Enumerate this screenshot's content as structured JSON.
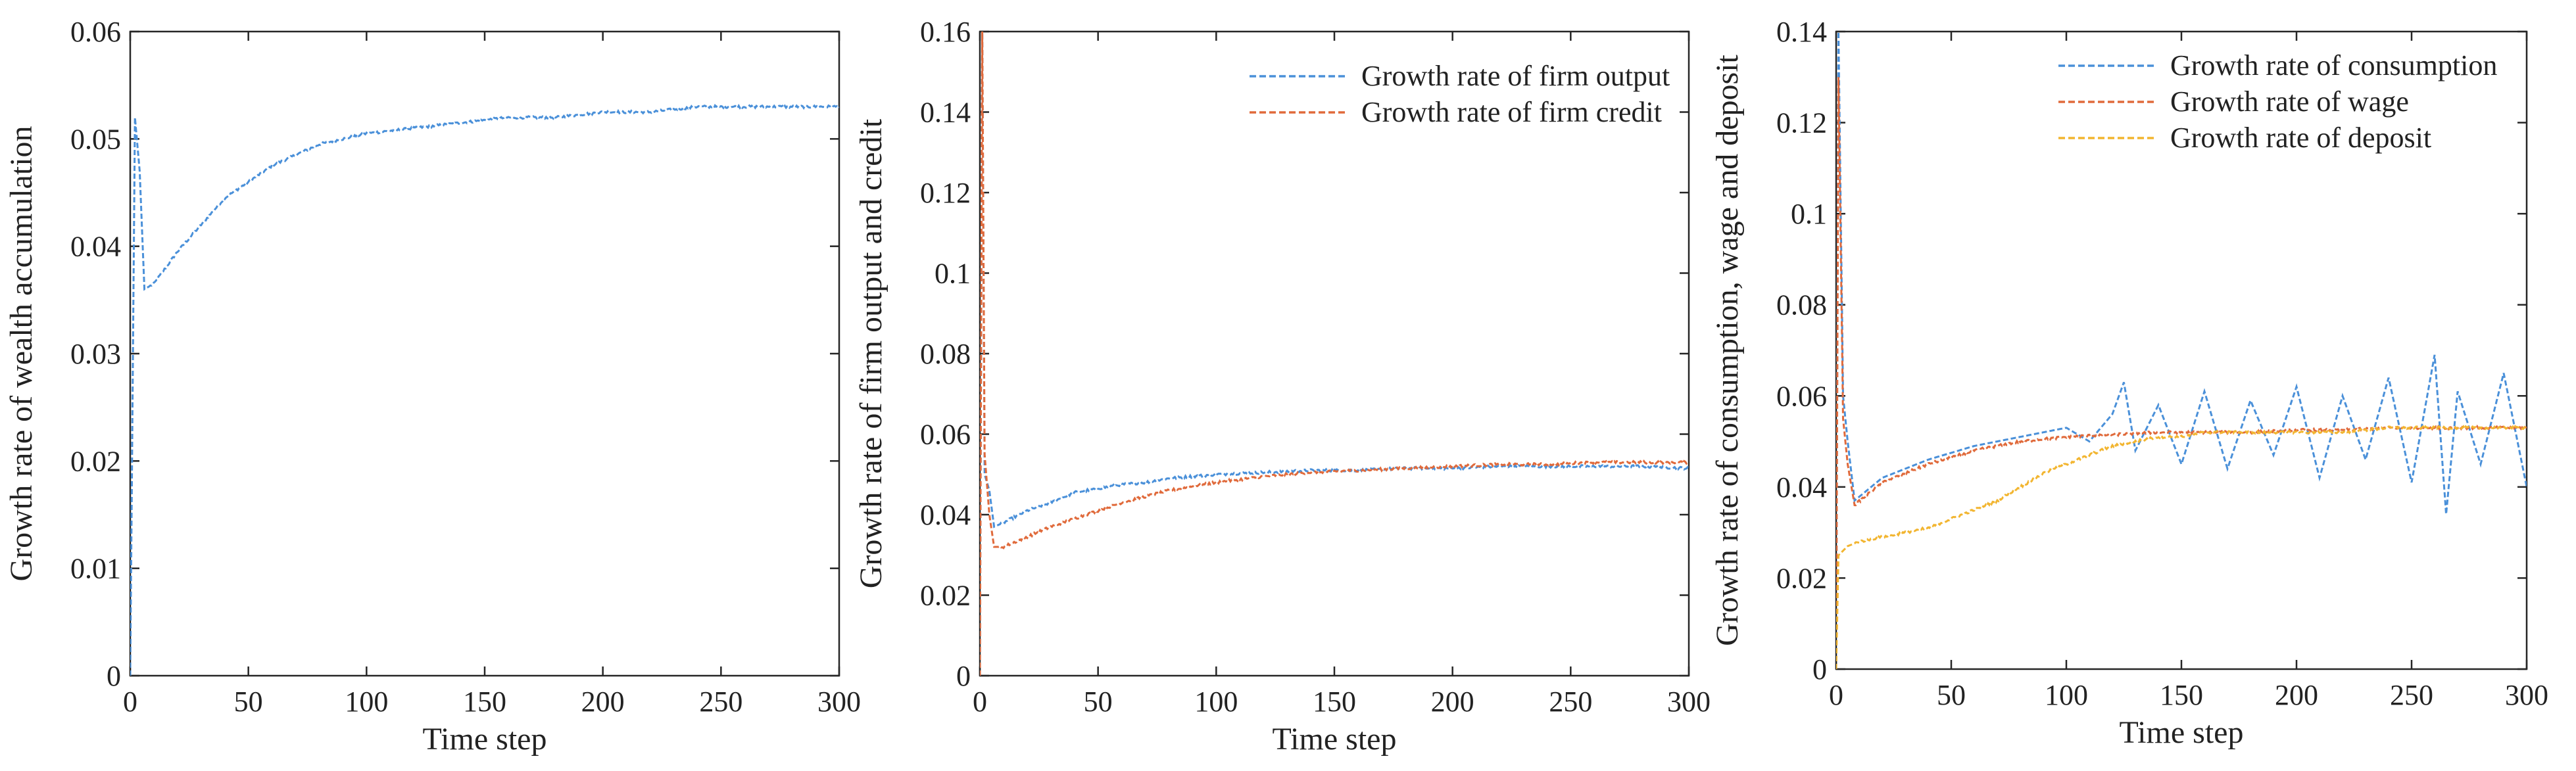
{
  "chart_data": [
    {
      "type": "line",
      "xlabel": "Time step",
      "ylabel": "Growth rate of wealth accumulation",
      "xlim": [
        0,
        300
      ],
      "ylim": [
        0,
        0.06
      ],
      "xticks": [
        "0",
        "50",
        "100",
        "150",
        "200",
        "250",
        "300"
      ],
      "yticks": [
        "0",
        "0.01",
        "0.02",
        "0.03",
        "0.04",
        "0.05",
        "0.06"
      ],
      "legend": "none",
      "series": [
        {
          "name": "Growth rate of wealth accumulation",
          "color": "#4a90d9",
          "x": [
            0,
            2,
            4,
            6,
            10,
            20,
            30,
            40,
            50,
            60,
            70,
            80,
            90,
            100,
            120,
            140,
            160,
            180,
            200,
            220,
            240,
            260,
            280,
            300
          ],
          "y": [
            0,
            0.052,
            0.047,
            0.036,
            0.0365,
            0.0395,
            0.042,
            0.0445,
            0.046,
            0.0475,
            0.0485,
            0.0495,
            0.05,
            0.0505,
            0.051,
            0.0515,
            0.052,
            0.052,
            0.0525,
            0.0525,
            0.053,
            0.053,
            0.053,
            0.053
          ]
        }
      ]
    },
    {
      "type": "line",
      "xlabel": "Time step",
      "ylabel": "Growth rate of firm output and credit",
      "xlim": [
        0,
        300
      ],
      "ylim": [
        0,
        0.16
      ],
      "xticks": [
        "0",
        "50",
        "100",
        "150",
        "200",
        "250",
        "300"
      ],
      "yticks": [
        "0",
        "0.02",
        "0.04",
        "0.06",
        "0.08",
        "0.1",
        "0.12",
        "0.14",
        "0.16"
      ],
      "legend": "top-right",
      "series": [
        {
          "name": "Growth rate of firm output",
          "color": "#4a90d9",
          "x": [
            0,
            1,
            2,
            4,
            6,
            10,
            20,
            30,
            40,
            50,
            60,
            70,
            80,
            90,
            100,
            120,
            140,
            160,
            180,
            200,
            220,
            240,
            260,
            280,
            300
          ],
          "y": [
            0,
            0.16,
            0.05,
            0.046,
            0.037,
            0.038,
            0.041,
            0.043,
            0.0455,
            0.0465,
            0.0475,
            0.048,
            0.049,
            0.0495,
            0.05,
            0.0505,
            0.051,
            0.051,
            0.0515,
            0.0515,
            0.052,
            0.052,
            0.052,
            0.052,
            0.0515
          ]
        },
        {
          "name": "Growth rate of firm credit",
          "color": "#e06a3b",
          "x": [
            0,
            1,
            2,
            4,
            6,
            10,
            20,
            30,
            40,
            50,
            60,
            70,
            80,
            90,
            100,
            120,
            140,
            160,
            180,
            200,
            220,
            240,
            260,
            280,
            300
          ],
          "y": [
            0,
            0.16,
            0.055,
            0.04,
            0.032,
            0.032,
            0.0345,
            0.037,
            0.039,
            0.041,
            0.043,
            0.0445,
            0.046,
            0.047,
            0.048,
            0.0495,
            0.0505,
            0.051,
            0.0515,
            0.052,
            0.0525,
            0.0525,
            0.053,
            0.053,
            0.053
          ]
        }
      ]
    },
    {
      "type": "line",
      "xlabel": "Time step",
      "ylabel": "Growth rate of consumption, wage and deposit",
      "xlim": [
        0,
        300
      ],
      "ylim": [
        0,
        0.14
      ],
      "xticks": [
        "0",
        "50",
        "100",
        "150",
        "200",
        "250",
        "300"
      ],
      "yticks": [
        "0",
        "0.02",
        "0.04",
        "0.06",
        "0.08",
        "0.1",
        "0.12",
        "0.14"
      ],
      "legend": "top-right",
      "series": [
        {
          "name": "Growth rate of consumption",
          "color": "#4a90d9",
          "x": [
            0,
            1,
            3,
            5,
            8,
            20,
            40,
            60,
            80,
            100,
            110,
            120,
            125,
            130,
            140,
            150,
            160,
            170,
            180,
            190,
            200,
            210,
            220,
            230,
            240,
            250,
            260,
            265,
            270,
            280,
            290,
            300
          ],
          "y": [
            0,
            0.14,
            0.06,
            0.05,
            0.037,
            0.042,
            0.046,
            0.049,
            0.051,
            0.053,
            0.05,
            0.056,
            0.063,
            0.048,
            0.058,
            0.045,
            0.061,
            0.044,
            0.059,
            0.047,
            0.062,
            0.042,
            0.06,
            0.046,
            0.064,
            0.041,
            0.069,
            0.034,
            0.061,
            0.045,
            0.065,
            0.04
          ]
        },
        {
          "name": "Growth rate of wage",
          "color": "#e06a3b",
          "x": [
            0,
            1,
            3,
            5,
            8,
            20,
            40,
            60,
            80,
            100,
            120,
            140,
            160,
            180,
            200,
            220,
            240,
            260,
            280,
            300
          ],
          "y": [
            0,
            0.13,
            0.055,
            0.045,
            0.036,
            0.041,
            0.045,
            0.048,
            0.05,
            0.051,
            0.0515,
            0.052,
            0.052,
            0.052,
            0.0525,
            0.0525,
            0.053,
            0.053,
            0.053,
            0.053
          ]
        },
        {
          "name": "Growth rate of deposit",
          "color": "#f2b530",
          "x": [
            0,
            1,
            3,
            5,
            10,
            20,
            30,
            40,
            50,
            60,
            70,
            80,
            90,
            100,
            110,
            120,
            130,
            140,
            150,
            160,
            180,
            200,
            220,
            240,
            260,
            280,
            300
          ],
          "y": [
            0,
            0.025,
            0.026,
            0.027,
            0.028,
            0.029,
            0.03,
            0.031,
            0.033,
            0.035,
            0.037,
            0.04,
            0.043,
            0.045,
            0.047,
            0.049,
            0.05,
            0.051,
            0.051,
            0.052,
            0.052,
            0.052,
            0.052,
            0.053,
            0.053,
            0.053,
            0.053
          ]
        }
      ]
    }
  ]
}
